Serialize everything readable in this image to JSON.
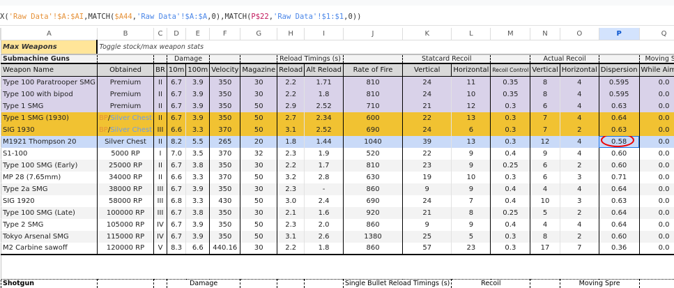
{
  "formula": {
    "parts": [
      {
        "t": "X(",
        "c": ""
      },
      {
        "t": "'Raw Data'!$A:$AI",
        "c": "f-or"
      },
      {
        "t": ",MATCH(",
        "c": ""
      },
      {
        "t": "$A44",
        "c": "f-or"
      },
      {
        "t": ",",
        "c": ""
      },
      {
        "t": "'Raw Data'!$A:$A",
        "c": "f-bl"
      },
      {
        "t": ",0),MATCH(",
        "c": ""
      },
      {
        "t": "P$22",
        "c": "f-pk"
      },
      {
        "t": ",",
        "c": ""
      },
      {
        "t": "'Raw Data'!$1:$1",
        "c": "f-bl"
      },
      {
        "t": ",0))",
        "c": ""
      }
    ]
  },
  "columns": [
    "A",
    "B",
    "C",
    "D",
    "E",
    "F",
    "G",
    "H",
    "I",
    "J",
    "K",
    "L",
    "M",
    "N",
    "O",
    "P",
    "Q"
  ],
  "selected_column": "P",
  "toggle": {
    "label": "Max Weapons",
    "description": "Toggle stock/max weapon stats"
  },
  "section": {
    "title": "Submachine Guns",
    "groups": {
      "damage": "Damage",
      "reload": "Reload Timings (s)",
      "statcard": "Statcard Recoil",
      "actual": "Actual Recoil",
      "moving": "Moving Spre"
    },
    "headers": [
      "Weapon Name",
      "Obtained",
      "BR",
      "10m",
      "100m",
      "Velocity",
      "Magazine",
      "Reload",
      "Alt Reload",
      "Rate of Fire",
      "Vertical",
      "Horizontal",
      "Recoil Control",
      "Vertical",
      "Horizontal",
      "Dispersion",
      "While Aiming"
    ],
    "rows": [
      {
        "style": "premium",
        "cells": [
          "Type 100 Paratrooper SMG",
          "Premium",
          "II",
          "6.7",
          "3.9",
          "350",
          "30",
          "2.2",
          "1.71",
          "810",
          "24",
          "11",
          "0.35",
          "8",
          "4",
          "0.595",
          "0.0"
        ]
      },
      {
        "style": "premium",
        "cells": [
          "Type 100 with bipod",
          "Premium",
          "II",
          "6.7",
          "3.9",
          "350",
          "30",
          "2.2",
          "1.8",
          "810",
          "24",
          "10",
          "0.35",
          "8",
          "4",
          "0.595",
          "0.0"
        ]
      },
      {
        "style": "premium",
        "cells": [
          "Type 1 SMG",
          "Premium",
          "II",
          "6.7",
          "3.9",
          "350",
          "50",
          "2.9",
          "2.52",
          "710",
          "21",
          "12",
          "0.3",
          "6",
          "4",
          "0.63",
          "0.0"
        ]
      },
      {
        "style": "chest",
        "cells": [
          "Type 1 SMG (1930)",
          "BP/Silver Chest",
          "II",
          "6.7",
          "3.9",
          "350",
          "50",
          "2.7",
          "2.34",
          "600",
          "22",
          "13",
          "0.3",
          "7",
          "4",
          "0.64",
          "0.0"
        ]
      },
      {
        "style": "chest",
        "cells": [
          "SIG 1930",
          "BP/Silver Chest",
          "III",
          "6.6",
          "3.3",
          "370",
          "50",
          "3.1",
          "2.52",
          "690",
          "24",
          "6",
          "0.3",
          "7",
          "2",
          "0.63",
          "0.0"
        ]
      },
      {
        "style": "selrow",
        "cells": [
          "M1921 Thompson 20",
          "Silver Chest",
          "II",
          "8.2",
          "5.5",
          "265",
          "20",
          "1.8",
          "1.44",
          "1040",
          "39",
          "13",
          "0.3",
          "12",
          "4",
          "0.58",
          "0.0"
        ]
      },
      {
        "style": "plain",
        "cells": [
          "S1-100",
          "5000 RP",
          "I",
          "7.0",
          "3.5",
          "370",
          "32",
          "2.3",
          "1.9",
          "520",
          "22",
          "9",
          "0.4",
          "9",
          "4",
          "0.60",
          "0.0"
        ]
      },
      {
        "style": "alt",
        "cells": [
          "Type 100 SMG (Early)",
          "25000 RP",
          "II",
          "6.7",
          "3.8",
          "350",
          "30",
          "2.2",
          "1.7",
          "810",
          "23",
          "9",
          "0.25",
          "6",
          "2",
          "0.60",
          "0.0"
        ]
      },
      {
        "style": "plain",
        "cells": [
          "MP 28 (7.65mm)",
          "34000 RP",
          "II",
          "6.6",
          "3.3",
          "370",
          "50",
          "3.2",
          "2.8",
          "630",
          "19",
          "10",
          "0.3",
          "6",
          "3",
          "0.71",
          "0.0"
        ]
      },
      {
        "style": "alt",
        "cells": [
          "Type 2a SMG",
          "38000 RP",
          "III",
          "6.7",
          "3.9",
          "350",
          "30",
          "2.3",
          "-",
          "860",
          "9",
          "9",
          "0.4",
          "4",
          "4",
          "0.64",
          "0.0"
        ]
      },
      {
        "style": "plain",
        "cells": [
          "SIG 1920",
          "58000 RP",
          "III",
          "6.8",
          "3.3",
          "430",
          "50",
          "3.0",
          "2.4",
          "690",
          "24",
          "7",
          "0.4",
          "10",
          "3",
          "0.63",
          "0.0"
        ]
      },
      {
        "style": "alt",
        "cells": [
          "Type 100 SMG (Late)",
          "100000 RP",
          "III",
          "6.7",
          "3.8",
          "350",
          "30",
          "2.1",
          "1.6",
          "920",
          "21",
          "8",
          "0.25",
          "5",
          "2",
          "0.64",
          "0.0"
        ]
      },
      {
        "style": "plain",
        "cells": [
          "Type 2 SMG",
          "105000 RP",
          "IV",
          "6.7",
          "3.9",
          "350",
          "50",
          "2.3",
          "2.0",
          "860",
          "9",
          "9",
          "0.4",
          "4",
          "4",
          "0.64",
          "0.0"
        ]
      },
      {
        "style": "alt",
        "cells": [
          "Tokyo Arsenal SMG",
          "115000 RP",
          "IV",
          "6.7",
          "3.9",
          "350",
          "50",
          "3.1",
          "2.6",
          "1380",
          "25",
          "5",
          "0.3",
          "8",
          "2",
          "0.60",
          "0.0"
        ]
      },
      {
        "style": "plain",
        "cells": [
          "M2 Carbine sawoff",
          "120000 RP",
          "V",
          "8.3",
          "6.6",
          "440.16",
          "30",
          "2.2",
          "1.8",
          "860",
          "57",
          "23",
          "0.3",
          "17",
          "7",
          "0.36",
          "0.0"
        ]
      }
    ]
  },
  "next_section": {
    "title": "Shotgun",
    "groups": {
      "damage": "Damage",
      "reload": "Single Bullet Reload Timings (s)",
      "recoil": "Recoil",
      "moving": "Moving Spre"
    }
  },
  "colors": {
    "premium": "#d9d2e9",
    "chest": "#f1c232",
    "selected_row": "#c9daf8",
    "toggle": "#ffe599",
    "annotation": "#e00000"
  }
}
